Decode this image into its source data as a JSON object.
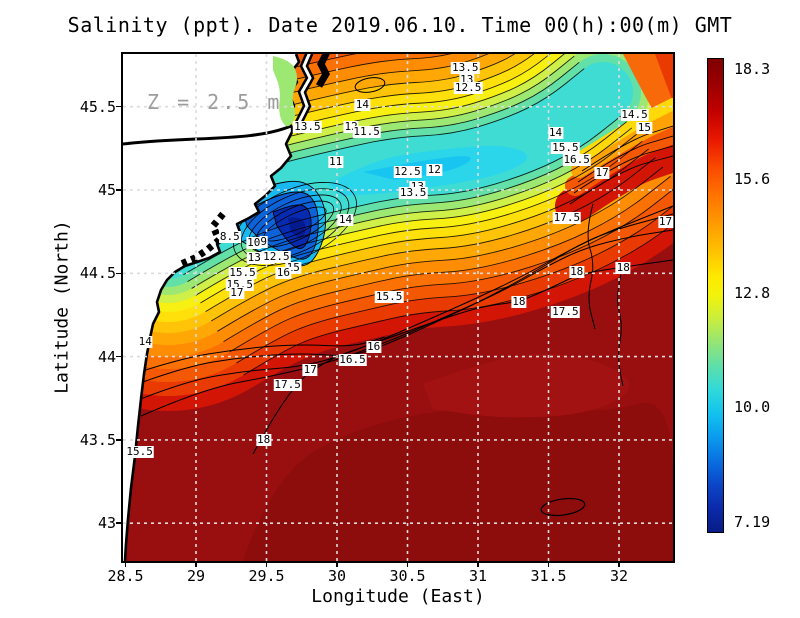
{
  "chart_data": {
    "type": "heatmap",
    "subtype": "filled-contour-map",
    "title": "Salinity (ppt). Date 2019.06.10. Time 00(h):00(m) GMT",
    "xlabel": "Longitude (East)",
    "ylabel": "Latitude (North)",
    "annotation": "Z = 2.5 m",
    "grid": true,
    "xlim": [
      28.5,
      32.4
    ],
    "ylim": [
      42.77,
      45.82
    ],
    "x_ticks": [
      "28.5",
      "29",
      "29.5",
      "30",
      "30.5",
      "31",
      "31.5",
      "32"
    ],
    "y_ticks": [
      "45.5",
      "45",
      "44.5",
      "44",
      "43.5",
      "43"
    ],
    "contour_interval": 0.5,
    "colorbar": {
      "min": 7.19,
      "max": 18.3,
      "ticks": [
        "18.3",
        "15.6",
        "12.8",
        "10.0",
        "7.19"
      ]
    },
    "contour_labels": [
      {
        "v": "13.5",
        "lon": 30.91,
        "lat": 45.73
      },
      {
        "v": "13",
        "lon": 30.92,
        "lat": 45.66
      },
      {
        "v": "12.5",
        "lon": 30.93,
        "lat": 45.61
      },
      {
        "v": "14",
        "lon": 30.18,
        "lat": 45.51
      },
      {
        "v": "13.5",
        "lon": 29.79,
        "lat": 45.38
      },
      {
        "v": "12",
        "lon": 30.1,
        "lat": 45.38
      },
      {
        "v": "11.5",
        "lon": 30.21,
        "lat": 45.35
      },
      {
        "v": "14",
        "lon": 31.55,
        "lat": 45.34
      },
      {
        "v": "14.5",
        "lon": 32.11,
        "lat": 45.45
      },
      {
        "v": "15",
        "lon": 32.18,
        "lat": 45.37
      },
      {
        "v": "15.5",
        "lon": 31.62,
        "lat": 45.25
      },
      {
        "v": "16.5",
        "lon": 31.7,
        "lat": 45.18
      },
      {
        "v": "11",
        "lon": 29.99,
        "lat": 45.17
      },
      {
        "v": "12.5",
        "lon": 30.5,
        "lat": 45.11
      },
      {
        "v": "12",
        "lon": 30.69,
        "lat": 45.12
      },
      {
        "v": "17",
        "lon": 31.88,
        "lat": 45.1
      },
      {
        "v": "13",
        "lon": 30.57,
        "lat": 45.02
      },
      {
        "v": "13.5",
        "lon": 30.54,
        "lat": 44.98
      },
      {
        "v": "14",
        "lon": 30.06,
        "lat": 44.82
      },
      {
        "v": "17.5",
        "lon": 31.63,
        "lat": 44.83
      },
      {
        "v": "17",
        "lon": 32.33,
        "lat": 44.81
      },
      {
        "v": "8.5",
        "lon": 29.24,
        "lat": 44.72
      },
      {
        "v": "10",
        "lon": 29.41,
        "lat": 44.68
      },
      {
        "v": "9",
        "lon": 29.48,
        "lat": 44.69
      },
      {
        "v": "13.5",
        "lon": 29.46,
        "lat": 44.59
      },
      {
        "v": "12.5",
        "lon": 29.57,
        "lat": 44.6
      },
      {
        "v": "15",
        "lon": 29.69,
        "lat": 44.53
      },
      {
        "v": "16",
        "lon": 29.62,
        "lat": 44.5
      },
      {
        "v": "15.5",
        "lon": 29.33,
        "lat": 44.5
      },
      {
        "v": "15.5",
        "lon": 29.31,
        "lat": 44.43
      },
      {
        "v": "17",
        "lon": 29.29,
        "lat": 44.38
      },
      {
        "v": "15.5",
        "lon": 30.37,
        "lat": 44.36
      },
      {
        "v": "18",
        "lon": 31.29,
        "lat": 44.33
      },
      {
        "v": "17.5",
        "lon": 31.62,
        "lat": 44.27
      },
      {
        "v": "18",
        "lon": 31.7,
        "lat": 44.51
      },
      {
        "v": "18",
        "lon": 32.03,
        "lat": 44.53
      },
      {
        "v": "14",
        "lon": 28.64,
        "lat": 44.09
      },
      {
        "v": "16",
        "lon": 30.26,
        "lat": 44.06
      },
      {
        "v": "16.5",
        "lon": 30.11,
        "lat": 43.98
      },
      {
        "v": "17",
        "lon": 29.81,
        "lat": 43.92
      },
      {
        "v": "17.5",
        "lon": 29.65,
        "lat": 43.83
      },
      {
        "v": "18",
        "lon": 29.48,
        "lat": 43.5
      },
      {
        "v": "15.5",
        "lon": 28.6,
        "lat": 43.43
      }
    ]
  }
}
